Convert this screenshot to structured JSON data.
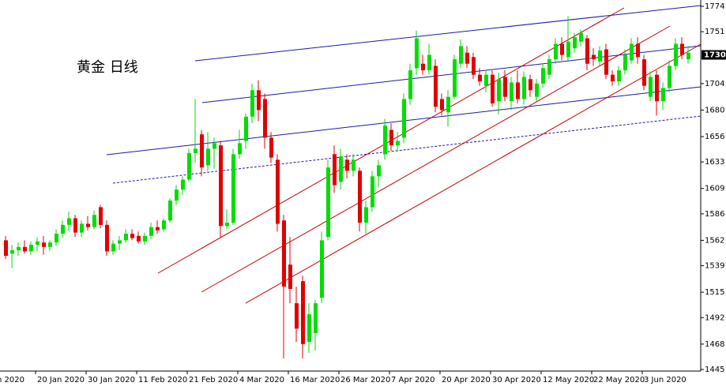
{
  "chart_data": {
    "type": "candlestick",
    "title": "黄金 日线",
    "x_edge_label": "n 2020",
    "categories": [
      null,
      null,
      null,
      null,
      null,
      "20 Jan 2020",
      null,
      null,
      null,
      null,
      null,
      null,
      null,
      "30 Jan 2020",
      null,
      null,
      null,
      null,
      null,
      null,
      null,
      "11 Feb 2020",
      null,
      null,
      null,
      null,
      null,
      null,
      null,
      "21 Feb 2020",
      null,
      null,
      null,
      null,
      null,
      null,
      null,
      "4 Mar 2020",
      null,
      null,
      null,
      null,
      null,
      null,
      null,
      "16 Mar 2020",
      null,
      null,
      null,
      null,
      null,
      null,
      null,
      "26 Mar 2020",
      null,
      null,
      null,
      null,
      null,
      null,
      null,
      "7 Apr 2020",
      null,
      null,
      null,
      null,
      null,
      null,
      null,
      "20 Apr 2020",
      null,
      null,
      null,
      null,
      null,
      null,
      null,
      "30 Apr 2020",
      null,
      null,
      null,
      null,
      null,
      null,
      null,
      "12 May 2020",
      null,
      null,
      null,
      null,
      null,
      null,
      null,
      "22 May 2020",
      null,
      null,
      null,
      null,
      null,
      null,
      null,
      "3 Jun 2020",
      null,
      null,
      null,
      null,
      null,
      null,
      null
    ],
    "open": [
      1562,
      1550,
      1553,
      1556,
      1552,
      1558,
      1560,
      1556,
      1560,
      1568,
      1576,
      1582,
      1569,
      1577,
      1574,
      1592,
      1576,
      1552,
      1559,
      1562,
      1568,
      1566,
      1561,
      1566,
      1574,
      1572,
      1580,
      1598,
      1608,
      1617,
      1641,
      1658,
      1630,
      1645,
      1648,
      1575,
      1578,
      1640,
      1652,
      1674,
      1698,
      1690,
      1655,
      1635,
      1580,
      1540,
      1505,
      1525,
      1470,
      1478,
      1510,
      1565,
      1640,
      1615,
      1635,
      1625,
      1625,
      1578,
      1592,
      1620,
      1640,
      1662,
      1648,
      1655,
      1690,
      1718,
      1722,
      1716,
      1720,
      1690,
      1678,
      1692,
      1722,
      1732,
      1728,
      1712,
      1702,
      1712,
      1688,
      1710,
      1688,
      1705,
      1690,
      1708,
      1692,
      1704,
      1712,
      1726,
      1740,
      1728,
      1736,
      1742,
      1745,
      1730,
      1724,
      1735,
      1712,
      1706,
      1716,
      1725,
      1740,
      1726,
      1692,
      1712,
      1688,
      1700,
      1720,
      1740,
      1726
    ],
    "high": [
      1566,
      1558,
      1560,
      1562,
      1561,
      1565,
      1566,
      1562,
      1572,
      1580,
      1588,
      1585,
      1580,
      1584,
      1589,
      1594,
      1580,
      1562,
      1566,
      1572,
      1572,
      1570,
      1569,
      1578,
      1580,
      1582,
      1600,
      1612,
      1620,
      1645,
      1690,
      1662,
      1660,
      1655,
      1652,
      1590,
      1645,
      1662,
      1677,
      1704,
      1707,
      1695,
      1660,
      1640,
      1585,
      1565,
      1520,
      1530,
      1505,
      1508,
      1570,
      1635,
      1648,
      1645,
      1640,
      1640,
      1628,
      1598,
      1625,
      1635,
      1672,
      1668,
      1660,
      1695,
      1722,
      1752,
      1730,
      1740,
      1726,
      1695,
      1698,
      1730,
      1744,
      1738,
      1732,
      1718,
      1716,
      1716,
      1714,
      1716,
      1710,
      1716,
      1715,
      1712,
      1708,
      1722,
      1730,
      1745,
      1746,
      1765,
      1750,
      1753,
      1748,
      1736,
      1738,
      1740,
      1716,
      1720,
      1735,
      1745,
      1746,
      1730,
      1715,
      1716,
      1705,
      1725,
      1745,
      1746,
      1738
    ],
    "low": [
      1545,
      1537,
      1548,
      1550,
      1549,
      1552,
      1549,
      1552,
      1557,
      1564,
      1570,
      1565,
      1565,
      1571,
      1572,
      1573,
      1548,
      1549,
      1553,
      1560,
      1562,
      1559,
      1558,
      1563,
      1568,
      1570,
      1578,
      1594,
      1603,
      1615,
      1632,
      1620,
      1625,
      1627,
      1565,
      1572,
      1576,
      1636,
      1645,
      1668,
      1670,
      1645,
      1632,
      1570,
      1455,
      1505,
      1470,
      1455,
      1460,
      1462,
      1505,
      1562,
      1605,
      1608,
      1618,
      1620,
      1570,
      1568,
      1588,
      1610,
      1635,
      1643,
      1642,
      1650,
      1685,
      1712,
      1712,
      1712,
      1678,
      1675,
      1665,
      1690,
      1718,
      1718,
      1708,
      1702,
      1696,
      1683,
      1676,
      1688,
      1680,
      1686,
      1685,
      1692,
      1688,
      1700,
      1708,
      1722,
      1725,
      1725,
      1732,
      1738,
      1716,
      1720,
      1720,
      1708,
      1702,
      1702,
      1712,
      1722,
      1722,
      1698,
      1688,
      1675,
      1680,
      1696,
      1716,
      1726,
      1722
    ],
    "close": [
      1548,
      1553,
      1556,
      1552,
      1558,
      1561,
      1556,
      1560,
      1568,
      1576,
      1582,
      1569,
      1577,
      1574,
      1585,
      1576,
      1552,
      1559,
      1562,
      1568,
      1564,
      1561,
      1566,
      1574,
      1571,
      1580,
      1598,
      1608,
      1617,
      1641,
      1645,
      1628,
      1645,
      1650,
      1575,
      1578,
      1640,
      1650,
      1674,
      1698,
      1680,
      1655,
      1637,
      1577,
      1520,
      1518,
      1482,
      1468,
      1495,
      1505,
      1562,
      1628,
      1612,
      1638,
      1625,
      1635,
      1578,
      1592,
      1620,
      1630,
      1666,
      1648,
      1652,
      1690,
      1716,
      1745,
      1716,
      1730,
      1683,
      1680,
      1692,
      1726,
      1738,
      1722,
      1712,
      1706,
      1712,
      1686,
      1708,
      1692,
      1705,
      1690,
      1710,
      1698,
      1704,
      1718,
      1726,
      1740,
      1730,
      1742,
      1746,
      1750,
      1722,
      1726,
      1734,
      1712,
      1706,
      1716,
      1730,
      1740,
      1728,
      1702,
      1710,
      1688,
      1700,
      1720,
      1740,
      1730,
      1732
    ],
    "up_color": "#00dd00",
    "down_color": "#e00000",
    "current_price": 1730,
    "ylim": [
      1445,
      1774
    ],
    "yticks": [
      1445,
      1468,
      1492,
      1515,
      1539,
      1562,
      1586,
      1609,
      1633,
      1656,
      1680,
      1704,
      1751,
      1774
    ]
  }
}
